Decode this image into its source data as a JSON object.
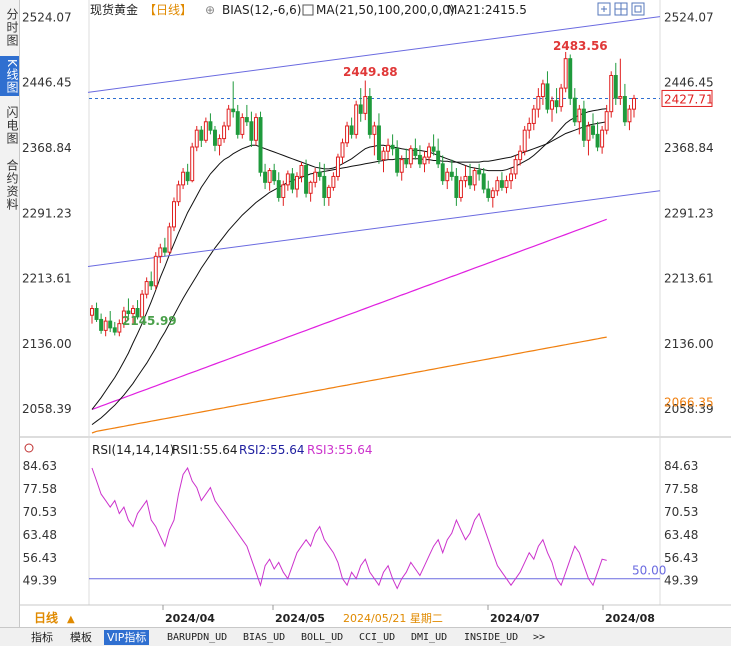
{
  "side_tabs": [
    "分时图",
    "K线图",
    "闪电图",
    "合约资料"
  ],
  "side_tab_active": 1,
  "header": {
    "symbol": "现货黄金",
    "period": "【日线】",
    "add_icon": "⊕",
    "bias": "BIAS(12,-6,6)",
    "ma_label": "MA(21,50,100,200,0,0)",
    "ma21_value": "MA21:2415.5"
  },
  "toolbar_icons": [
    "expand-icon",
    "split-icon",
    "layout-icon"
  ],
  "price_axis_labels": [
    "2524.07",
    "2446.45",
    "2368.84",
    "2291.23",
    "2213.61",
    "2136.00",
    "2058.39"
  ],
  "current_price": "2427.71",
  "ma_right_label": "2066.35",
  "annotations": {
    "high1": "2449.88",
    "high2": "2483.56",
    "low": "2145.99"
  },
  "rsi": {
    "label": "RSI(14,14,14)",
    "rsi1": "RSI1:55.64",
    "rsi2": "RSI2:55.64",
    "rsi3": "RSI3:55.64",
    "axis_labels": [
      "84.63",
      "77.58",
      "70.53",
      "63.48",
      "56.43",
      "49.39"
    ],
    "midline": "50.00"
  },
  "time_axis": {
    "period_button": "日线",
    "labels": [
      "2024/04",
      "2024/05",
      "2024/07",
      "2024/08"
    ],
    "crosshair_date": "2024/05/21 星期二"
  },
  "bottom_tabs": [
    "指标",
    "模板",
    "VIP指标",
    "BARUPDN_UD",
    "BIAS_UD",
    "BOLL_UD",
    "CCI_UD",
    "DMI_UD",
    "INSIDE_UD",
    ">>"
  ],
  "bottom_tab_active": 2,
  "colors": {
    "up": "#e02020",
    "down": "#1f9a3c",
    "ma21": "#111111",
    "ma50": "#111111",
    "ma100": "#e020e0",
    "ma200": "#f08010",
    "channel": "#6a6ae0",
    "rsi": "#cc33cc",
    "accent": "#2f6fd0"
  },
  "chart_data": {
    "type": "candlestick",
    "title": "现货黄金 【日线】",
    "ylim": [
      2030,
      2540
    ],
    "candles": [
      [
        2170,
        2182,
        2160,
        2178
      ],
      [
        2178,
        2185,
        2162,
        2165
      ],
      [
        2165,
        2172,
        2148,
        2152
      ],
      [
        2152,
        2168,
        2145,
        2163
      ],
      [
        2163,
        2175,
        2150,
        2155
      ],
      [
        2155,
        2162,
        2146,
        2150
      ],
      [
        2150,
        2165,
        2145,
        2160
      ],
      [
        2160,
        2180,
        2155,
        2175
      ],
      [
        2175,
        2190,
        2168,
        2172
      ],
      [
        2172,
        2182,
        2160,
        2178
      ],
      [
        2178,
        2188,
        2165,
        2168
      ],
      [
        2168,
        2200,
        2165,
        2195
      ],
      [
        2195,
        2215,
        2190,
        2210
      ],
      [
        2210,
        2222,
        2200,
        2205
      ],
      [
        2205,
        2245,
        2200,
        2240
      ],
      [
        2240,
        2255,
        2232,
        2250
      ],
      [
        2250,
        2262,
        2240,
        2245
      ],
      [
        2245,
        2280,
        2242,
        2275
      ],
      [
        2275,
        2310,
        2270,
        2305
      ],
      [
        2305,
        2330,
        2300,
        2325
      ],
      [
        2325,
        2345,
        2320,
        2340
      ],
      [
        2340,
        2350,
        2325,
        2330
      ],
      [
        2330,
        2375,
        2328,
        2370
      ],
      [
        2370,
        2395,
        2365,
        2390
      ],
      [
        2390,
        2395,
        2370,
        2378
      ],
      [
        2378,
        2405,
        2375,
        2400
      ],
      [
        2400,
        2410,
        2385,
        2390
      ],
      [
        2390,
        2395,
        2365,
        2372
      ],
      [
        2372,
        2385,
        2360,
        2380
      ],
      [
        2380,
        2400,
        2375,
        2395
      ],
      [
        2395,
        2420,
        2390,
        2415
      ],
      [
        2415,
        2448,
        2405,
        2412
      ],
      [
        2412,
        2420,
        2380,
        2385
      ],
      [
        2385,
        2410,
        2380,
        2405
      ],
      [
        2405,
        2420,
        2395,
        2400
      ],
      [
        2400,
        2412,
        2370,
        2378
      ],
      [
        2378,
        2410,
        2372,
        2405
      ],
      [
        2405,
        2412,
        2335,
        2340
      ],
      [
        2340,
        2350,
        2320,
        2328
      ],
      [
        2328,
        2345,
        2318,
        2342
      ],
      [
        2342,
        2350,
        2325,
        2330
      ],
      [
        2330,
        2340,
        2305,
        2310
      ],
      [
        2310,
        2330,
        2300,
        2325
      ],
      [
        2325,
        2342,
        2318,
        2338
      ],
      [
        2338,
        2345,
        2315,
        2320
      ],
      [
        2320,
        2340,
        2310,
        2335
      ],
      [
        2335,
        2352,
        2328,
        2348
      ],
      [
        2348,
        2355,
        2310,
        2315
      ],
      [
        2315,
        2330,
        2305,
        2328
      ],
      [
        2328,
        2345,
        2322,
        2340
      ],
      [
        2340,
        2352,
        2330,
        2335
      ],
      [
        2335,
        2350,
        2300,
        2310
      ],
      [
        2310,
        2325,
        2300,
        2322
      ],
      [
        2322,
        2340,
        2318,
        2335
      ],
      [
        2335,
        2362,
        2330,
        2358
      ],
      [
        2358,
        2380,
        2350,
        2375
      ],
      [
        2375,
        2400,
        2370,
        2395
      ],
      [
        2395,
        2405,
        2380,
        2385
      ],
      [
        2385,
        2425,
        2380,
        2420
      ],
      [
        2420,
        2440,
        2400,
        2410
      ],
      [
        2410,
        2449,
        2402,
        2430
      ],
      [
        2430,
        2440,
        2380,
        2385
      ],
      [
        2385,
        2400,
        2360,
        2395
      ],
      [
        2395,
        2410,
        2350,
        2355
      ],
      [
        2355,
        2370,
        2340,
        2365
      ],
      [
        2365,
        2380,
        2355,
        2372
      ],
      [
        2372,
        2385,
        2360,
        2368
      ],
      [
        2368,
        2378,
        2335,
        2340
      ],
      [
        2340,
        2360,
        2330,
        2355
      ],
      [
        2355,
        2368,
        2345,
        2350
      ],
      [
        2350,
        2372,
        2345,
        2368
      ],
      [
        2368,
        2380,
        2355,
        2360
      ],
      [
        2360,
        2372,
        2345,
        2350
      ],
      [
        2350,
        2365,
        2340,
        2358
      ],
      [
        2358,
        2375,
        2350,
        2370
      ],
      [
        2370,
        2385,
        2360,
        2365
      ],
      [
        2365,
        2380,
        2345,
        2350
      ],
      [
        2350,
        2360,
        2325,
        2330
      ],
      [
        2330,
        2345,
        2320,
        2340
      ],
      [
        2340,
        2355,
        2330,
        2335
      ],
      [
        2335,
        2345,
        2300,
        2310
      ],
      [
        2310,
        2335,
        2305,
        2330
      ],
      [
        2330,
        2348,
        2322,
        2335
      ],
      [
        2335,
        2350,
        2320,
        2325
      ],
      [
        2325,
        2345,
        2318,
        2342
      ],
      [
        2342,
        2350,
        2330,
        2338
      ],
      [
        2338,
        2345,
        2315,
        2320
      ],
      [
        2320,
        2330,
        2305,
        2310
      ],
      [
        2310,
        2322,
        2298,
        2318
      ],
      [
        2318,
        2335,
        2312,
        2330
      ],
      [
        2330,
        2340,
        2318,
        2322
      ],
      [
        2322,
        2336,
        2315,
        2330
      ],
      [
        2330,
        2345,
        2320,
        2338
      ],
      [
        2338,
        2360,
        2332,
        2355
      ],
      [
        2355,
        2372,
        2348,
        2365
      ],
      [
        2365,
        2395,
        2360,
        2390
      ],
      [
        2390,
        2405,
        2380,
        2398
      ],
      [
        2398,
        2420,
        2390,
        2415
      ],
      [
        2415,
        2440,
        2405,
        2430
      ],
      [
        2430,
        2450,
        2420,
        2445
      ],
      [
        2445,
        2460,
        2410,
        2415
      ],
      [
        2415,
        2430,
        2400,
        2425
      ],
      [
        2425,
        2440,
        2410,
        2418
      ],
      [
        2418,
        2445,
        2412,
        2440
      ],
      [
        2440,
        2483,
        2435,
        2475
      ],
      [
        2475,
        2480,
        2420,
        2428
      ],
      [
        2428,
        2440,
        2395,
        2400
      ],
      [
        2400,
        2420,
        2385,
        2415
      ],
      [
        2415,
        2425,
        2370,
        2378
      ],
      [
        2378,
        2400,
        2360,
        2395
      ],
      [
        2395,
        2410,
        2380,
        2385
      ],
      [
        2385,
        2400,
        2365,
        2370
      ],
      [
        2370,
        2395,
        2362,
        2390
      ],
      [
        2390,
        2420,
        2385,
        2412
      ],
      [
        2412,
        2460,
        2405,
        2455
      ],
      [
        2455,
        2470,
        2420,
        2428
      ],
      [
        2428,
        2475,
        2420,
        2430
      ],
      [
        2430,
        2445,
        2395,
        2400
      ],
      [
        2400,
        2420,
        2390,
        2415
      ],
      [
        2415,
        2432,
        2405,
        2427.71
      ]
    ],
    "ma21": [
      2058,
      2065,
      2072,
      2080,
      2088,
      2096,
      2105,
      2115,
      2125,
      2137,
      2148,
      2160,
      2173,
      2186,
      2200,
      2215,
      2228,
      2242,
      2255,
      2268,
      2280,
      2292,
      2302,
      2312,
      2322,
      2330,
      2338,
      2344,
      2350,
      2355,
      2358,
      2362,
      2365,
      2368,
      2370,
      2372,
      2372,
      2370,
      2368,
      2366,
      2364,
      2362,
      2360,
      2358,
      2356,
      2354,
      2352,
      2350,
      2348,
      2346,
      2345,
      2344,
      2344,
      2345,
      2347,
      2350,
      2353,
      2356,
      2360,
      2364,
      2368,
      2370,
      2371,
      2372,
      2372,
      2371,
      2370,
      2369,
      2368,
      2367,
      2366,
      2366,
      2366,
      2365,
      2364,
      2362,
      2360,
      2358,
      2356,
      2354,
      2352,
      2350,
      2348,
      2346,
      2345,
      2344,
      2343,
      2342,
      2342,
      2342,
      2342,
      2343,
      2345,
      2347,
      2350,
      2353,
      2356,
      2360,
      2365,
      2370,
      2375,
      2380,
      2386,
      2392,
      2398,
      2402,
      2405,
      2408,
      2410,
      2412,
      2413,
      2414,
      2415,
      2415.5
    ],
    "ma50": [
      2040,
      2044,
      2048,
      2053,
      2058,
      2063,
      2069,
      2075,
      2082,
      2089,
      2097,
      2105,
      2113,
      2122,
      2131,
      2141,
      2150,
      2160,
      2170,
      2180,
      2190,
      2199,
      2208,
      2217,
      2226,
      2234,
      2242,
      2250,
      2257,
      2264,
      2271,
      2277,
      2283,
      2289,
      2294,
      2299,
      2304,
      2308,
      2312,
      2316,
      2319,
      2322,
      2325,
      2328,
      2330,
      2332,
      2334,
      2336,
      2338,
      2339,
      2340,
      2341,
      2342,
      2343,
      2344,
      2345,
      2346,
      2347,
      2348,
      2349,
      2350,
      2351,
      2352,
      2353,
      2354,
      2355,
      2355,
      2356,
      2356,
      2356,
      2356,
      2356,
      2356,
      2355,
      2355,
      2354,
      2354,
      2353,
      2353,
      2352,
      2352,
      2352,
      2352,
      2352,
      2352,
      2352,
      2353,
      2353,
      2354,
      2355,
      2356,
      2357,
      2358,
      2360,
      2362,
      2364,
      2366,
      2368,
      2370,
      2372,
      2374,
      2377,
      2380,
      2383,
      2386,
      2388,
      2390,
      2392,
      2394,
      2396,
      2397,
      2398,
      2399,
      2400
    ],
    "ma100": [
      2058,
      2060,
      2062,
      2064,
      2066,
      2068,
      2070,
      2072,
      2074,
      2076,
      2078,
      2080,
      2082,
      2084,
      2086,
      2088,
      2090,
      2092,
      2094,
      2096,
      2098,
      2100,
      2102,
      2104,
      2106,
      2108,
      2110,
      2112,
      2114,
      2116,
      2118,
      2120,
      2122,
      2124,
      2126,
      2128,
      2130,
      2132,
      2134,
      2136,
      2138,
      2140,
      2142,
      2144,
      2146,
      2148,
      2150,
      2152,
      2154,
      2156,
      2158,
      2160,
      2162,
      2164,
      2166,
      2168,
      2170,
      2172,
      2174,
      2176,
      2178,
      2180,
      2182,
      2184,
      2186,
      2188,
      2190,
      2192,
      2194,
      2196,
      2198,
      2200,
      2202,
      2204,
      2206,
      2208,
      2210,
      2212,
      2214,
      2216,
      2218,
      2220,
      2222,
      2224,
      2226,
      2228,
      2230,
      2232,
      2234,
      2236,
      2238,
      2240,
      2242,
      2244,
      2246,
      2248,
      2250,
      2252,
      2254,
      2256,
      2258,
      2260,
      2262,
      2264,
      2266,
      2268,
      2270,
      2272,
      2274,
      2276,
      2278,
      2280,
      2282,
      2284
    ],
    "ma200": [
      2030,
      2032,
      2033,
      2034,
      2035,
      2036,
      2037,
      2038,
      2039,
      2040,
      2041,
      2042,
      2043,
      2044,
      2045,
      2046,
      2047,
      2048,
      2049,
      2050,
      2051,
      2052,
      2053,
      2054,
      2055,
      2056,
      2057,
      2058,
      2059,
      2060,
      2061,
      2062,
      2063,
      2064,
      2065,
      2066,
      2067,
      2068,
      2069,
      2070,
      2071,
      2072,
      2073,
      2074,
      2075,
      2076,
      2077,
      2078,
      2079,
      2080,
      2081,
      2082,
      2083,
      2084,
      2085,
      2086,
      2087,
      2088,
      2089,
      2090,
      2091,
      2092,
      2093,
      2094,
      2095,
      2096,
      2097,
      2098,
      2099,
      2100,
      2101,
      2102,
      2103,
      2104,
      2105,
      2106,
      2107,
      2108,
      2109,
      2110,
      2111,
      2112,
      2113,
      2114,
      2115,
      2116,
      2117,
      2118,
      2119,
      2120,
      2121,
      2122,
      2123,
      2124,
      2125,
      2126,
      2127,
      2128,
      2129,
      2130,
      2131,
      2132,
      2133,
      2134,
      2135,
      2136,
      2137,
      2138,
      2139,
      2140,
      2141,
      2142,
      2143,
      2144
    ],
    "channel_upper": {
      "start": 2435,
      "end": 2525
    },
    "channel_lower": {
      "start": 2228,
      "end": 2318
    },
    "rsi_values": [
      84,
      80,
      76,
      74,
      72,
      74,
      70,
      72,
      68,
      66,
      70,
      72,
      74,
      68,
      66,
      63,
      60,
      65,
      68,
      76,
      82,
      84,
      80,
      78,
      74,
      76,
      78,
      74,
      72,
      70,
      68,
      66,
      64,
      62,
      60,
      56,
      52,
      48,
      54,
      56,
      53,
      55,
      52,
      50,
      54,
      58,
      60,
      62,
      60,
      64,
      66,
      62,
      60,
      58,
      55,
      50,
      48,
      52,
      50,
      54,
      56,
      52,
      50,
      48,
      52,
      54,
      50,
      47,
      50,
      52,
      55,
      53,
      51,
      54,
      57,
      60,
      62,
      58,
      62,
      64,
      68,
      65,
      62,
      64,
      68,
      70,
      66,
      62,
      58,
      54,
      52,
      50,
      48,
      50,
      52,
      55,
      58,
      56,
      60,
      62,
      58,
      55,
      50,
      48,
      52,
      56,
      60,
      58,
      54,
      50,
      48,
      52,
      56,
      55.64
    ],
    "rsi_ylim": [
      45,
      88
    ]
  }
}
